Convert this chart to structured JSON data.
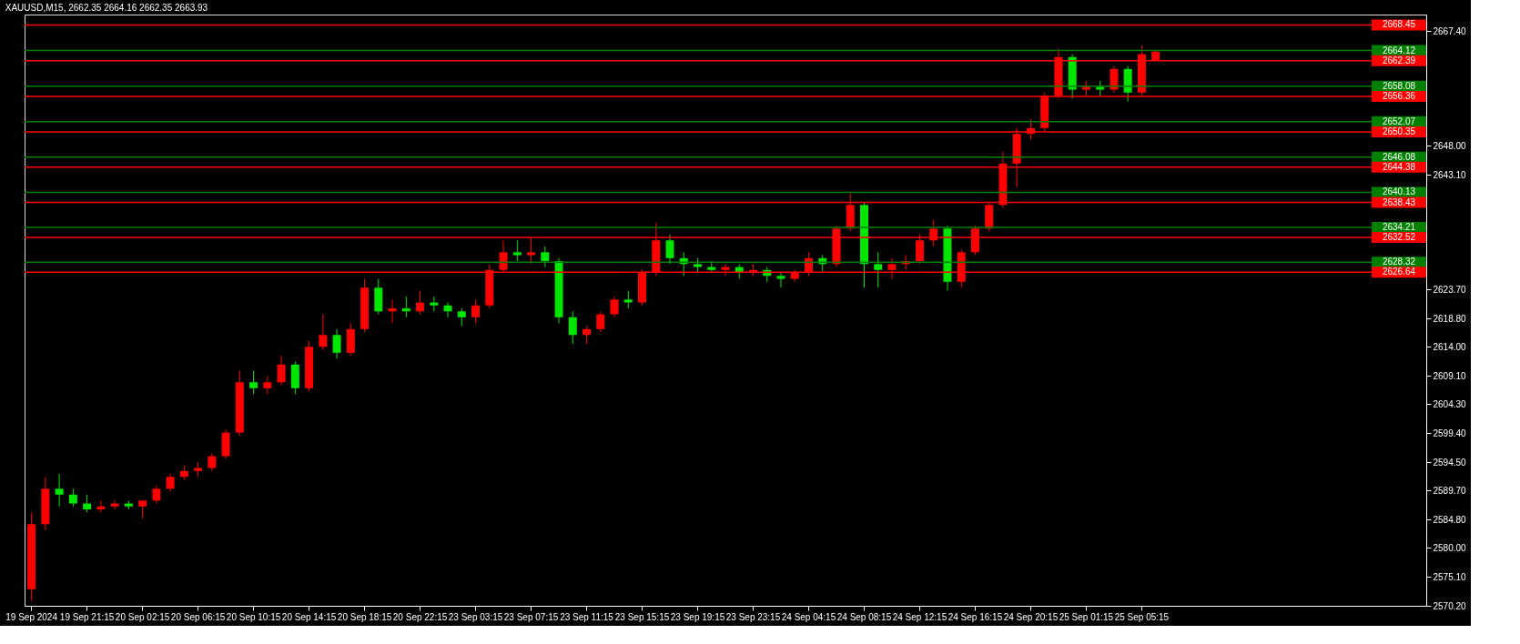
{
  "chart_data": {
    "type": "candlestick",
    "title": "XAUUSD,M15, 2662.35 2664.16 2662.35 2663.93",
    "categories": [
      "19 Sep 2024",
      null,
      null,
      null,
      "19 Sep 21:15",
      null,
      null,
      null,
      "20 Sep 02:15",
      null,
      null,
      null,
      "20 Sep 06:15",
      null,
      null,
      null,
      "20 Sep 10:15",
      null,
      null,
      null,
      "20 Sep 14:15",
      null,
      null,
      null,
      "20 Sep 18:15",
      null,
      null,
      null,
      "20 Sep 22:15",
      null,
      null,
      null,
      "23 Sep 03:15",
      null,
      null,
      null,
      "23 Sep 07:15",
      null,
      null,
      null,
      "23 Sep 11:15",
      null,
      null,
      null,
      "23 Sep 15:15",
      null,
      null,
      null,
      "23 Sep 19:15",
      null,
      null,
      null,
      "23 Sep 23:15",
      null,
      null,
      null,
      "24 Sep 04:15",
      null,
      null,
      null,
      "24 Sep 08:15",
      null,
      null,
      null,
      "24 Sep 12:15",
      null,
      null,
      null,
      "24 Sep 16:15",
      null,
      null,
      null,
      "24 Sep 20:15",
      null,
      null,
      null,
      "25 Sep 01:15",
      null,
      null,
      null,
      "25 Sep 05:15",
      null,
      null,
      null,
      null,
      null,
      null,
      null,
      null,
      null,
      null,
      null,
      null,
      null,
      null,
      null,
      null,
      null,
      null,
      null,
      null
    ],
    "ohlc": [
      [
        2573,
        2586,
        2571,
        2584
      ],
      [
        2584,
        2592,
        2583,
        2590
      ],
      [
        2590,
        2592.5,
        2587,
        2589
      ],
      [
        2589,
        2590,
        2587,
        2587.5
      ],
      [
        2587.5,
        2589,
        2586,
        2586.5
      ],
      [
        2586.5,
        2588,
        2586,
        2587
      ],
      [
        2587,
        2588,
        2586.5,
        2587.5
      ],
      [
        2587.5,
        2588,
        2586.5,
        2587
      ],
      [
        2587,
        2588,
        2585,
        2588
      ],
      [
        2588,
        2590.5,
        2587.5,
        2590
      ],
      [
        2590,
        2592.5,
        2589.5,
        2592
      ],
      [
        2592,
        2594,
        2591.5,
        2593
      ],
      [
        2593,
        2594.5,
        2592,
        2593.5
      ],
      [
        2593.5,
        2596,
        2593,
        2595.5
      ],
      [
        2595.5,
        2600,
        2595,
        2599.5
      ],
      [
        2599.5,
        2610,
        2599,
        2608
      ],
      [
        2608,
        2610,
        2606,
        2607
      ],
      [
        2607,
        2609,
        2606,
        2608
      ],
      [
        2608,
        2612.5,
        2607.5,
        2611
      ],
      [
        2611,
        2611.5,
        2606,
        2607
      ],
      [
        2607,
        2615,
        2606.5,
        2614
      ],
      [
        2614,
        2619.5,
        2613.5,
        2616
      ],
      [
        2616,
        2617,
        2612,
        2613
      ],
      [
        2613,
        2618,
        2612.5,
        2617
      ],
      [
        2617,
        2625.5,
        2616.5,
        2624
      ],
      [
        2624,
        2625.5,
        2619.5,
        2620
      ],
      [
        2620,
        2622,
        2618,
        2620.5
      ],
      [
        2620.5,
        2622.5,
        2619,
        2620
      ],
      [
        2620,
        2623.5,
        2619.5,
        2621.5
      ],
      [
        2621.5,
        2622.5,
        2620,
        2621
      ],
      [
        2621,
        2621.5,
        2619,
        2620
      ],
      [
        2620,
        2620.5,
        2617.5,
        2619
      ],
      [
        2619,
        2622,
        2618,
        2621
      ],
      [
        2621,
        2628,
        2620.5,
        2627
      ],
      [
        2627,
        2632,
        2626.5,
        2630
      ],
      [
        2630,
        2632,
        2628.5,
        2629.5
      ],
      [
        2629.5,
        2632.5,
        2628,
        2630
      ],
      [
        2630,
        2631,
        2627.5,
        2628.5
      ],
      [
        2628.5,
        2629,
        2618,
        2619
      ],
      [
        2619,
        2620,
        2614.5,
        2616
      ],
      [
        2616,
        2617.5,
        2614.5,
        2617
      ],
      [
        2617,
        2620,
        2616.5,
        2619.5
      ],
      [
        2619.5,
        2622.5,
        2619,
        2622
      ],
      [
        2622,
        2623.5,
        2620.5,
        2621.5
      ],
      [
        2621.5,
        2627,
        2621,
        2626.5
      ],
      [
        2626.5,
        2635,
        2626,
        2632
      ],
      [
        2632,
        2633,
        2628,
        2629
      ],
      [
        2629,
        2630,
        2626,
        2628
      ],
      [
        2628,
        2629,
        2626.5,
        2627.5
      ],
      [
        2627.5,
        2628.5,
        2626.5,
        2627
      ],
      [
        2627,
        2628,
        2626,
        2627.5
      ],
      [
        2627.5,
        2628,
        2625.5,
        2626.5
      ],
      [
        2626.5,
        2628,
        2626,
        2627
      ],
      [
        2627,
        2627.5,
        2625,
        2626
      ],
      [
        2626,
        2626.5,
        2624,
        2625.5
      ],
      [
        2625.5,
        2627,
        2625,
        2626.5
      ],
      [
        2626.5,
        2630,
        2626,
        2629
      ],
      [
        2629,
        2629.5,
        2626.5,
        2628
      ],
      [
        2628,
        2634.5,
        2627.5,
        2634
      ],
      [
        2634,
        2640,
        2633.5,
        2638
      ],
      [
        2638,
        2638.5,
        2624,
        2628
      ],
      [
        2628,
        2630,
        2624,
        2627
      ],
      [
        2627,
        2629,
        2625.5,
        2628
      ],
      [
        2628,
        2629.5,
        2627,
        2628.5
      ],
      [
        2628.5,
        2633,
        2628,
        2632
      ],
      [
        2632,
        2635.5,
        2631,
        2634
      ],
      [
        2634,
        2634.5,
        2623.5,
        2625
      ],
      [
        2625,
        2630.5,
        2624,
        2630
      ],
      [
        2630,
        2634.5,
        2629.5,
        2634
      ],
      [
        2634,
        2638.5,
        2633.5,
        2638
      ],
      [
        2638,
        2647,
        2637.5,
        2645
      ],
      [
        2645,
        2651,
        2641,
        2650
      ],
      [
        2650,
        2652.5,
        2649,
        2651
      ],
      [
        2651,
        2657,
        2650.5,
        2656.5
      ],
      [
        2656.5,
        2664.5,
        2656,
        2663
      ],
      [
        2663,
        2663.5,
        2656,
        2657.5
      ],
      [
        2657.5,
        2659,
        2656.5,
        2658
      ],
      [
        2658,
        2659,
        2656.5,
        2657.5
      ],
      [
        2657.5,
        2661.5,
        2657,
        2661
      ],
      [
        2661,
        2661.5,
        2655.5,
        2657
      ],
      [
        2657,
        2665,
        2656.5,
        2663.5
      ],
      [
        2662.35,
        2664.16,
        2662.35,
        2663.93
      ],
      null,
      null,
      null,
      null,
      null,
      null,
      null,
      null,
      null,
      null,
      null,
      null,
      null,
      null,
      null,
      null,
      null,
      null,
      null
    ],
    "colors": [
      "#ff0000",
      "#ff0000",
      "#00e600",
      "#00e600",
      "#00e600",
      "#ff0000",
      "#ff0000",
      "#00e600",
      "#ff0000",
      "#ff0000",
      "#ff0000",
      "#ff0000",
      "#ff0000",
      "#ff0000",
      "#ff0000",
      "#ff0000",
      "#00e600",
      "#ff0000",
      "#ff0000",
      "#00e600",
      "#ff0000",
      "#ff0000",
      "#00e600",
      "#ff0000",
      "#ff0000",
      "#00e600",
      "#ff0000",
      "#00e600",
      "#ff0000",
      "#00e600",
      "#00e600",
      "#00e600",
      "#ff0000",
      "#ff0000",
      "#ff0000",
      "#00e600",
      "#ff0000",
      "#00e600",
      "#00e600",
      "#00e600",
      "#ff0000",
      "#ff0000",
      "#ff0000",
      "#00e600",
      "#ff0000",
      "#ff0000",
      "#00e600",
      "#00e600",
      "#00e600",
      "#00e600",
      "#ff0000",
      "#00e600",
      "#ff0000",
      "#00e600",
      "#00e600",
      "#ff0000",
      "#ff0000",
      "#00e600",
      "#ff0000",
      "#ff0000",
      "#00e600",
      "#00e600",
      "#ff0000",
      "#ff0000",
      "#ff0000",
      "#ff0000",
      "#00e600",
      "#ff0000",
      "#ff0000",
      "#ff0000",
      "#ff0000",
      "#ff0000",
      "#ff0000",
      "#ff0000",
      "#ff0000",
      "#00e600",
      "#ff0000",
      "#00e600",
      "#ff0000",
      "#00e600",
      "#ff0000",
      "#ff0000",
      null,
      null,
      null,
      null,
      null,
      null,
      null,
      null,
      null,
      null,
      null,
      null,
      null,
      null,
      null,
      null,
      null,
      null,
      null
    ],
    "ylim": [
      2570.2,
      2670.2
    ],
    "yticks": [
      {
        "value": 2570.2,
        "label": "2570.20"
      },
      {
        "value": 2575.1,
        "label": "2575.10"
      },
      {
        "value": 2580,
        "label": "2580.00"
      },
      {
        "value": 2584.8,
        "label": "2584.80"
      },
      {
        "value": 2589.7,
        "label": "2589.70"
      },
      {
        "value": 2594.5,
        "label": "2594.50"
      },
      {
        "value": 2599.4,
        "label": "2599.40"
      },
      {
        "value": 2604.3,
        "label": "2604.30"
      },
      {
        "value": 2609.1,
        "label": "2609.10"
      },
      {
        "value": 2614,
        "label": "2614.00"
      },
      {
        "value": 2618.8,
        "label": "2618.80"
      },
      {
        "value": 2623.7,
        "label": "2623.70"
      },
      {
        "value": 2643.1,
        "label": "2643.10"
      },
      {
        "value": 2648,
        "label": "2648.00"
      },
      {
        "value": 2667.4,
        "label": "2667.40"
      }
    ],
    "ref_lines": [
      {
        "axis": "y",
        "value": 2668.45,
        "label": "2668.45",
        "color": "#ff0000"
      },
      {
        "axis": "y",
        "value": 2664.12,
        "label": "2664.12",
        "color": "#008000"
      },
      {
        "axis": "y",
        "value": 2662.39,
        "label": "2662.39",
        "color": "#ff0000"
      },
      {
        "axis": "y",
        "value": 2658.08,
        "label": "2658.08",
        "color": "#008000"
      },
      {
        "axis": "y",
        "value": 2656.36,
        "label": "2656.36",
        "color": "#ff0000"
      },
      {
        "axis": "y",
        "value": 2652.07,
        "label": "2652.07",
        "color": "#008000"
      },
      {
        "axis": "y",
        "value": 2650.35,
        "label": "2650.35",
        "color": "#ff0000"
      },
      {
        "axis": "y",
        "value": 2646.08,
        "label": "2646.08",
        "color": "#008000"
      },
      {
        "axis": "y",
        "value": 2644.38,
        "label": "2644.38",
        "color": "#ff0000"
      },
      {
        "axis": "y",
        "value": 2640.13,
        "label": "2640.13",
        "color": "#008000"
      },
      {
        "axis": "y",
        "value": 2638.43,
        "label": "2638.43",
        "color": "#ff0000"
      },
      {
        "axis": "y",
        "value": 2634.21,
        "label": "2634.21",
        "color": "#008000"
      },
      {
        "axis": "y",
        "value": 2632.52,
        "label": "2632.52",
        "color": "#ff0000"
      },
      {
        "axis": "y",
        "value": 2628.32,
        "label": "2628.32",
        "color": "#008000"
      },
      {
        "axis": "y",
        "value": 2626.64,
        "label": "2626.64",
        "color": "#ff0000"
      }
    ],
    "grid": false
  }
}
